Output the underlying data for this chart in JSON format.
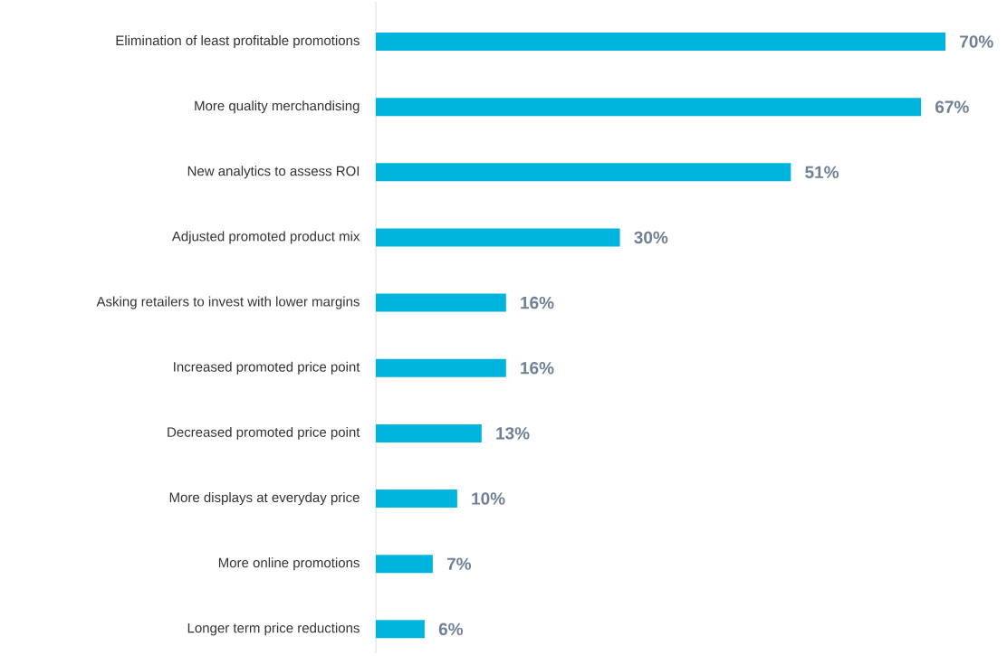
{
  "chart_data": {
    "type": "bar",
    "orientation": "horizontal",
    "categories": [
      "Elimination of least profitable promotions",
      "More quality merchandising",
      "New analytics to assess ROI",
      "Adjusted promoted product mix",
      "Asking retailers to invest with lower margins",
      "Increased promoted price point",
      "Decreased promoted price point",
      "More displays at everyday price",
      "More online promotions",
      "Longer term price reductions"
    ],
    "values": [
      70,
      67,
      51,
      30,
      16,
      16,
      13,
      10,
      7,
      6
    ],
    "value_labels": [
      "70%",
      "67%",
      "51%",
      "30%",
      "16%",
      "16%",
      "13%",
      "10%",
      "7%",
      "6%"
    ],
    "color": "#00b5dd"
  }
}
